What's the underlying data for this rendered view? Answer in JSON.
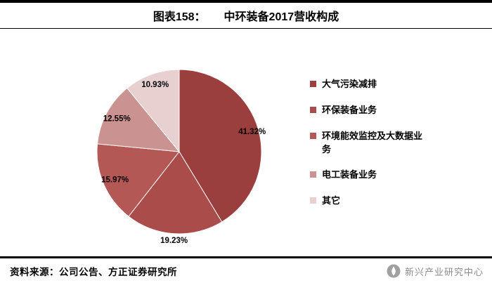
{
  "header": {
    "figure_label": "图表158：",
    "title": "中环装备2017营收构成"
  },
  "chart_data": {
    "type": "pie",
    "title": "中环装备2017营收构成",
    "labels": [
      "大气污染减排",
      "环保装备业务",
      "环境能效监控及大数据业务",
      "电工装备业务",
      "其它"
    ],
    "values": [
      41.32,
      19.23,
      15.97,
      12.55,
      10.93
    ],
    "value_labels": [
      "41.32%",
      "19.23%",
      "15.97%",
      "12.55%",
      "10.93%"
    ],
    "unit": "%",
    "colors": [
      "#9a3f3d",
      "#aa4c4a",
      "#b45856",
      "#ca9391",
      "#e9d0d0"
    ],
    "legend_position": "right",
    "start_angle": "top",
    "direction": "clockwise"
  },
  "footer": {
    "source": "资料来源：公司公告、方正证券研究所",
    "watermark": "新兴产业研究中心"
  }
}
